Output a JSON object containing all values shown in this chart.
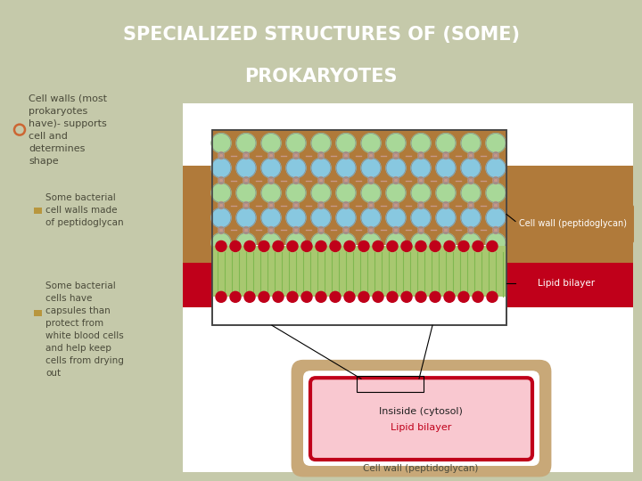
{
  "title_line1": "SPECIALIZED STRUCTURES OF (SOME)",
  "title_line2": "PROKARYOTES",
  "title_bg": "#4a4645",
  "title_color": "#ffffff",
  "body_bg": "#c5c9aa",
  "content_bg": "#c5c9aa",
  "bullet_color": "#cc6633",
  "sub_bullet_color": "#b8963e",
  "text_color": "#4a4a3a",
  "cell_wall_color": "#b07a3a",
  "lipid_bilayer_color": "#c0001a",
  "lipid_inner_color": "#a8c870",
  "cell_wall_label": "Cell wall (peptidoglycan)",
  "lipid_bilayer_label": "Lipid bilayer",
  "cytosol_label": "Insiside (cytosol)",
  "lipid_bilayer_label2": "Lipid bilayer",
  "cell_wall_label2": "Cell wall (peptidoglycan)",
  "cytosol_fill": "#f9c8d0",
  "cytosol_border": "#c8a878",
  "diagram_bg": "#ffffff",
  "circle_color1": "#a8d898",
  "circle_color2": "#88c8e0",
  "crosslink_color": "#c89888",
  "label_box_cw": "#b07a3a",
  "label_box_lip": "#c0001a"
}
